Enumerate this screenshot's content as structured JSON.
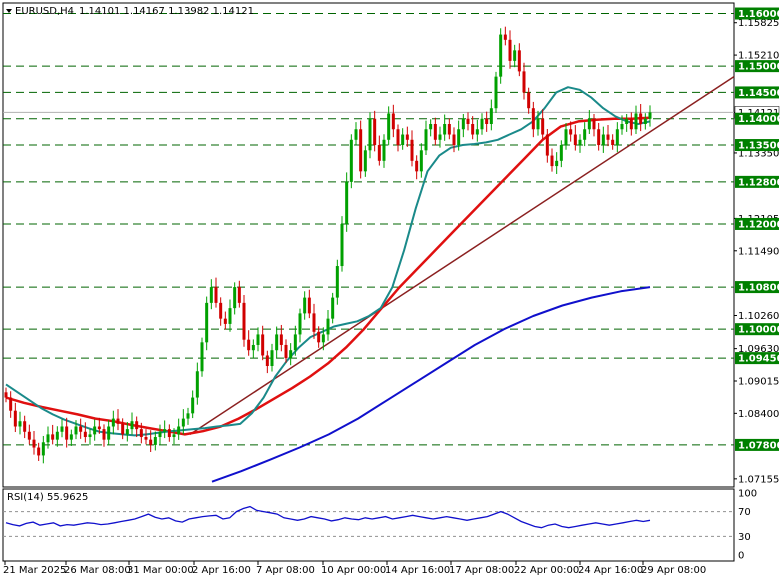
{
  "header": {
    "symbol": "EURUSD,H4",
    "ohlc": "1.14101 1.14167 1.13982 1.14121"
  },
  "rsi_header": {
    "label": "RSI(14) 55.9625"
  },
  "colors": {
    "up_candle": "#00a000",
    "down_candle": "#d00000",
    "ma_fast": "#1a8a8a",
    "ma_mid": "#e01010",
    "ma_slow": "#1010cc",
    "trendline": "#8b2020",
    "level_line": "#006400",
    "level_label_bg": "#008000",
    "rsi_line": "#1010cc",
    "price_label_bg": "#ffffff"
  },
  "chart_data": [
    {
      "type": "candlestick",
      "title": "EURUSD,H4",
      "x_ticks": [
        "21 Mar 2025",
        "26 Mar 08:00",
        "31 Mar 00:00",
        "2 Apr 16:00",
        "7 Apr 08:00",
        "10 Apr 00:00",
        "14 Apr 16:00",
        "17 Apr 08:00",
        "22 Apr 00:00",
        "24 Apr 16:00",
        "29 Apr 08:00"
      ],
      "y_ticks": [
        1.15825,
        1.1521,
        1.14121,
        1.1335,
        1.12105,
        1.1149,
        1.1026,
        1.0963,
        1.09015,
        1.084,
        1.07155
      ],
      "ylim": [
        1.07,
        1.162
      ],
      "current_price": 1.14121,
      "levels": [
        1.16,
        1.15,
        1.145,
        1.14,
        1.135,
        1.128,
        1.12,
        1.108,
        1.1,
        1.0945,
        1.078
      ],
      "series": [
        {
          "name": "",
          "kind": "price",
          "close": [
            1.087,
            1.0845,
            1.0815,
            1.0825,
            1.0805,
            1.079,
            1.0775,
            1.076,
            1.0785,
            1.08,
            1.079,
            1.0805,
            1.0815,
            1.079,
            1.08,
            1.0815,
            1.0805,
            1.0795,
            1.08,
            1.0815,
            1.081,
            1.079,
            1.0815,
            1.083,
            1.082,
            1.08,
            1.081,
            1.0825,
            1.081,
            1.0795,
            1.079,
            1.078,
            1.0795,
            1.0805,
            1.081,
            1.0795,
            1.08,
            1.0815,
            1.083,
            1.084,
            1.087,
            1.092,
            1.0975,
            1.105,
            1.108,
            1.105,
            1.102,
            1.101,
            1.104,
            1.108,
            1.105,
            1.098,
            1.096,
            1.097,
            1.099,
            1.095,
            1.093,
            1.096,
            1.099,
            1.097,
            1.0945,
            1.096,
            1.099,
            1.103,
            1.106,
            1.103,
            1.0995,
            1.0975,
            1.099,
            1.102,
            1.106,
            1.112,
            1.12,
            1.128,
            1.136,
            1.138,
            1.13,
            1.134,
            1.14,
            1.135,
            1.132,
            1.136,
            1.141,
            1.138,
            1.135,
            1.137,
            1.136,
            1.132,
            1.13,
            1.134,
            1.138,
            1.139,
            1.136,
            1.137,
            1.139,
            1.137,
            1.135,
            1.138,
            1.14,
            1.139,
            1.137,
            1.138,
            1.14,
            1.139,
            1.142,
            1.148,
            1.156,
            1.155,
            1.151,
            1.153,
            1.149,
            1.145,
            1.142,
            1.138,
            1.14,
            1.137,
            1.133,
            1.131,
            1.132,
            1.135,
            1.138,
            1.137,
            1.135,
            1.136,
            1.138,
            1.14,
            1.138,
            1.135,
            1.137,
            1.136,
            1.135,
            1.138,
            1.139,
            1.14,
            1.138,
            1.141,
            1.139,
            1.14,
            1.1412
          ]
        },
        {
          "name": "",
          "kind": "ma_fast",
          "values": [
            1.0895,
            1.088,
            1.0865,
            1.085,
            1.0838,
            1.0828,
            1.082,
            1.0812,
            1.0805,
            1.0802,
            1.08,
            1.0798,
            1.08,
            1.0803,
            1.0806,
            1.0808,
            1.081,
            1.0812,
            1.0815,
            1.0817,
            1.082,
            1.084,
            1.087,
            1.091,
            1.094,
            1.0965,
            1.0985,
            1.0995,
            1.1005,
            1.101,
            1.1015,
            1.1025,
            1.104,
            1.108,
            1.115,
            1.123,
            1.13,
            1.133,
            1.1345,
            1.135,
            1.1352,
            1.1355,
            1.136,
            1.137,
            1.138,
            1.1395,
            1.142,
            1.145,
            1.146,
            1.1455,
            1.144,
            1.142,
            1.1405,
            1.1395,
            1.139,
            1.1395
          ]
        },
        {
          "name": "",
          "kind": "ma_mid",
          "values": [
            1.087,
            1.086,
            1.0852,
            1.0845,
            1.0838,
            1.083,
            1.0825,
            1.0818,
            1.0812,
            1.0806,
            1.08,
            1.0806,
            1.0815,
            1.083,
            1.0848,
            1.0868,
            1.0888,
            1.091,
            1.0935,
            1.0965,
            1.1,
            1.104,
            1.108,
            1.1115,
            1.115,
            1.1185,
            1.122,
            1.1255,
            1.129,
            1.1325,
            1.136,
            1.1385,
            1.1395,
            1.1398,
            1.14,
            1.14,
            1.1402
          ]
        },
        {
          "name": "",
          "kind": "ma_slow",
          "values": [
            1.071,
            1.073,
            1.0752,
            1.0775,
            1.08,
            1.083,
            1.0865,
            1.09,
            1.0935,
            1.097,
            1.1,
            1.1025,
            1.1045,
            1.106,
            1.1072,
            1.108
          ]
        },
        {
          "name": "",
          "kind": "trendline",
          "from": [
            1.079,
            1.1365
          ],
          "to": [
            1.0795,
            1.1495
          ]
        }
      ]
    },
    {
      "type": "line",
      "title": "RSI(14) 55.9625",
      "y_ticks": [
        100,
        70,
        30,
        0
      ],
      "ylim": [
        0,
        100
      ],
      "levels": [
        70,
        30
      ],
      "series": [
        {
          "name": "",
          "values": [
            52,
            49,
            47,
            51,
            53,
            48,
            50,
            52,
            47,
            49,
            48,
            50,
            52,
            51,
            49,
            50,
            52,
            54,
            56,
            58,
            62,
            66,
            61,
            58,
            60,
            55,
            53,
            58,
            60,
            62,
            63,
            64,
            58,
            60,
            70,
            75,
            78,
            72,
            70,
            68,
            66,
            60,
            58,
            56,
            58,
            62,
            60,
            58,
            55,
            57,
            60,
            58,
            57,
            60,
            58,
            60,
            62,
            58,
            60,
            62,
            64,
            62,
            60,
            58,
            60,
            62,
            60,
            58,
            56,
            58,
            60,
            62,
            66,
            70,
            66,
            60,
            54,
            50,
            46,
            44,
            48,
            50,
            46,
            44,
            46,
            48,
            50,
            52,
            50,
            48,
            50,
            52,
            54,
            56,
            54,
            56
          ]
        }
      ]
    }
  ]
}
